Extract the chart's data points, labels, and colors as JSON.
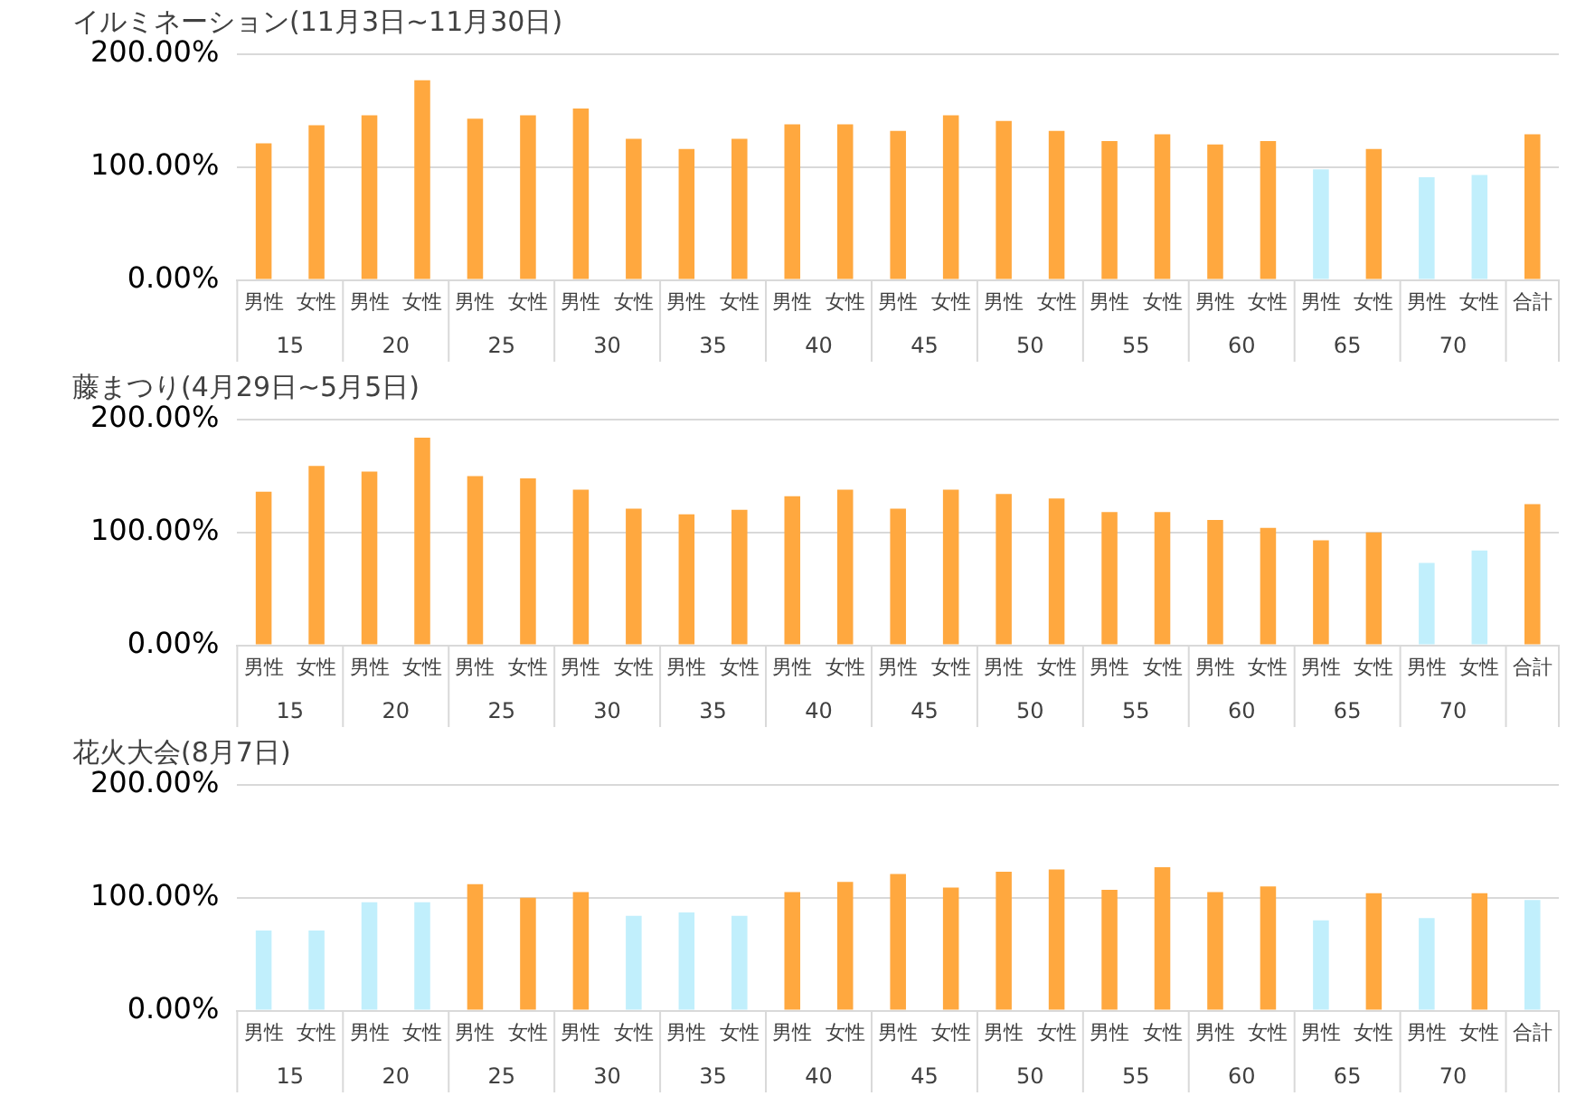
{
  "chart_data": [
    {
      "type": "bar",
      "title": "イルミネーション(11月3日~11月30日)",
      "categories": [
        "男性",
        "女性",
        "男性",
        "女性",
        "男性",
        "女性",
        "男性",
        "女性",
        "男性",
        "女性",
        "男性",
        "女性",
        "男性",
        "女性",
        "男性",
        "女性",
        "男性",
        "女性",
        "男性",
        "女性",
        "男性",
        "女性",
        "男性",
        "女性",
        "合計"
      ],
      "values": [
        121,
        137,
        146,
        177,
        143,
        146,
        152,
        125,
        116,
        125,
        138,
        138,
        132,
        146,
        141,
        132,
        123,
        129,
        120,
        123,
        98,
        116,
        91,
        93,
        129
      ],
      "colors": [
        "#ffa83f",
        "#ffa83f",
        "#ffa83f",
        "#ffa83f",
        "#ffa83f",
        "#ffa83f",
        "#ffa83f",
        "#ffa83f",
        "#ffa83f",
        "#ffa83f",
        "#ffa83f",
        "#ffa83f",
        "#ffa83f",
        "#ffa83f",
        "#ffa83f",
        "#ffa83f",
        "#ffa83f",
        "#ffa83f",
        "#ffa83f",
        "#ffa83f",
        "#c1effc",
        "#ffa83f",
        "#c1effc",
        "#c1effc",
        "#ffa83f"
      ],
      "ylim": [
        0,
        200
      ],
      "yticks": [
        {
          "value": 0,
          "label": "0.00%"
        },
        {
          "value": 100,
          "label": "100.00%"
        },
        {
          "value": 200,
          "label": "200.00%"
        }
      ],
      "grid": "y",
      "legend": false,
      "annotations": [
        "15",
        "20",
        "25",
        "30",
        "35",
        "40",
        "45",
        "50",
        "55",
        "60",
        "65",
        "70"
      ]
    },
    {
      "type": "bar",
      "title": "藤まつり(4月29日~5月5日)",
      "categories": [
        "男性",
        "女性",
        "男性",
        "女性",
        "男性",
        "女性",
        "男性",
        "女性",
        "男性",
        "女性",
        "男性",
        "女性",
        "男性",
        "女性",
        "男性",
        "女性",
        "男性",
        "女性",
        "男性",
        "女性",
        "男性",
        "女性",
        "男性",
        "女性",
        "合計"
      ],
      "values": [
        136,
        159,
        154,
        184,
        150,
        148,
        138,
        121,
        116,
        120,
        132,
        138,
        121,
        138,
        134,
        130,
        118,
        118,
        111,
        104,
        93,
        100,
        73,
        84,
        125
      ],
      "colors": [
        "#ffa83f",
        "#ffa83f",
        "#ffa83f",
        "#ffa83f",
        "#ffa83f",
        "#ffa83f",
        "#ffa83f",
        "#ffa83f",
        "#ffa83f",
        "#ffa83f",
        "#ffa83f",
        "#ffa83f",
        "#ffa83f",
        "#ffa83f",
        "#ffa83f",
        "#ffa83f",
        "#ffa83f",
        "#ffa83f",
        "#ffa83f",
        "#ffa83f",
        "#ffa83f",
        "#ffa83f",
        "#c1effc",
        "#c1effc",
        "#ffa83f"
      ],
      "ylim": [
        0,
        200
      ],
      "yticks": [
        {
          "value": 0,
          "label": "0.00%"
        },
        {
          "value": 100,
          "label": "100.00%"
        },
        {
          "value": 200,
          "label": "200.00%"
        }
      ],
      "grid": "y",
      "legend": false,
      "annotations": [
        "15",
        "20",
        "25",
        "30",
        "35",
        "40",
        "45",
        "50",
        "55",
        "60",
        "65",
        "70"
      ]
    },
    {
      "type": "bar",
      "title": "花火大会(8月7日)",
      "categories": [
        "男性",
        "女性",
        "男性",
        "女性",
        "男性",
        "女性",
        "男性",
        "女性",
        "男性",
        "女性",
        "男性",
        "女性",
        "男性",
        "女性",
        "男性",
        "女性",
        "男性",
        "女性",
        "男性",
        "女性",
        "男性",
        "女性",
        "男性",
        "女性",
        "合計"
      ],
      "values": [
        71,
        71,
        96,
        96,
        112,
        100,
        105,
        84,
        87,
        84,
        105,
        114,
        121,
        109,
        123,
        125,
        107,
        127,
        105,
        110,
        80,
        104,
        82,
        104,
        98
      ],
      "colors": [
        "#c1effc",
        "#c1effc",
        "#c1effc",
        "#c1effc",
        "#ffa83f",
        "#ffa83f",
        "#ffa83f",
        "#c1effc",
        "#c1effc",
        "#c1effc",
        "#ffa83f",
        "#ffa83f",
        "#ffa83f",
        "#ffa83f",
        "#ffa83f",
        "#ffa83f",
        "#ffa83f",
        "#ffa83f",
        "#ffa83f",
        "#ffa83f",
        "#c1effc",
        "#ffa83f",
        "#c1effc",
        "#ffa83f",
        "#c1effc"
      ],
      "ylim": [
        0,
        200
      ],
      "yticks": [
        {
          "value": 0,
          "label": "0.00%"
        },
        {
          "value": 100,
          "label": "100.00%"
        },
        {
          "value": 200,
          "label": "200.00%"
        }
      ],
      "grid": "y",
      "legend": false,
      "annotations": [
        "15",
        "20",
        "25",
        "30",
        "35",
        "40",
        "45",
        "50",
        "55",
        "60",
        "65",
        "70"
      ]
    }
  ]
}
